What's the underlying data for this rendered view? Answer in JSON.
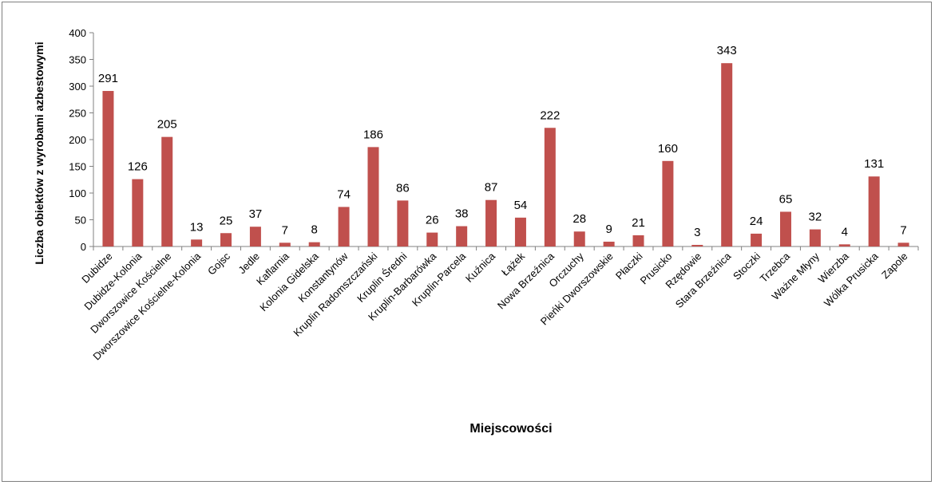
{
  "chart_data": {
    "type": "bar",
    "categories": [
      "Dubidze",
      "Dubidze-Kolonia",
      "Dworszowice Kościelne",
      "Dworszowice Kościelne-Kolonia",
      "Gojsc",
      "Jedle",
      "Kaflarnia",
      "Kolonia Gidelska",
      "Konstantynów",
      "Kruplin Radomszczański",
      "Kruplin Średni",
      "Kruplin-Barbarówka",
      "Kruplin-Parcela",
      "Kuźnica",
      "Łążek",
      "Nowa Brzeźnica",
      "Orczuchy",
      "Pieńki Dworszowskie",
      "Płaczki",
      "Prusicko",
      "Rzędowie",
      "Stara Brzeźnica",
      "Stoczki",
      "Trzebca",
      "Ważne Młyny",
      "Wierzba",
      "Wólka Prusicka",
      "Zapole"
    ],
    "values": [
      291,
      126,
      205,
      13,
      25,
      37,
      7,
      8,
      74,
      186,
      86,
      26,
      38,
      87,
      54,
      222,
      28,
      9,
      21,
      160,
      3,
      343,
      24,
      65,
      32,
      4,
      131,
      7
    ],
    "data_labels": true,
    "title": "",
    "xlabel": "Miejscowości",
    "ylabel": "Liczba obiektów z wyrobami azbestowymi",
    "ylim": [
      0,
      400
    ],
    "yticks": [
      0,
      50,
      100,
      150,
      200,
      250,
      300,
      350,
      400
    ],
    "grid": false,
    "legend": "none",
    "bar_color": "#c0504d"
  }
}
